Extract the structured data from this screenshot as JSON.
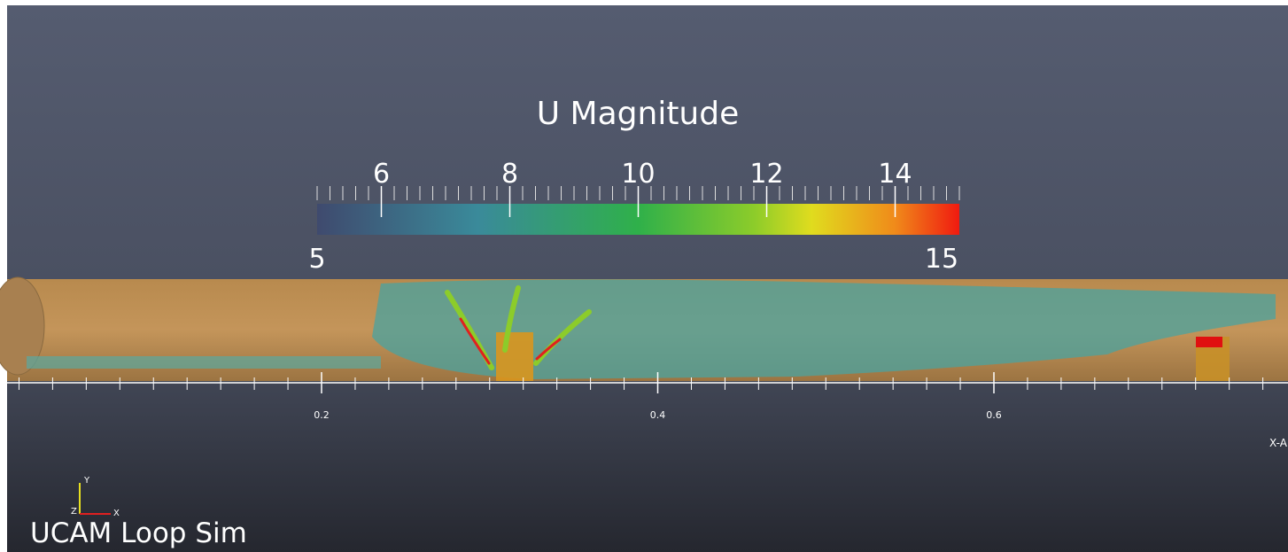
{
  "colorbar": {
    "title": "U Magnitude",
    "range": [
      5,
      15
    ],
    "ticks": [
      6,
      8,
      10,
      12,
      14
    ]
  },
  "ruler": {
    "ticks": [
      0.2,
      0.4,
      0.6
    ],
    "axis_label": "X-A"
  },
  "orientation_axes": {
    "labels": [
      "Y",
      "Z",
      "X"
    ]
  },
  "caption": "UCAM Loop Sim"
}
